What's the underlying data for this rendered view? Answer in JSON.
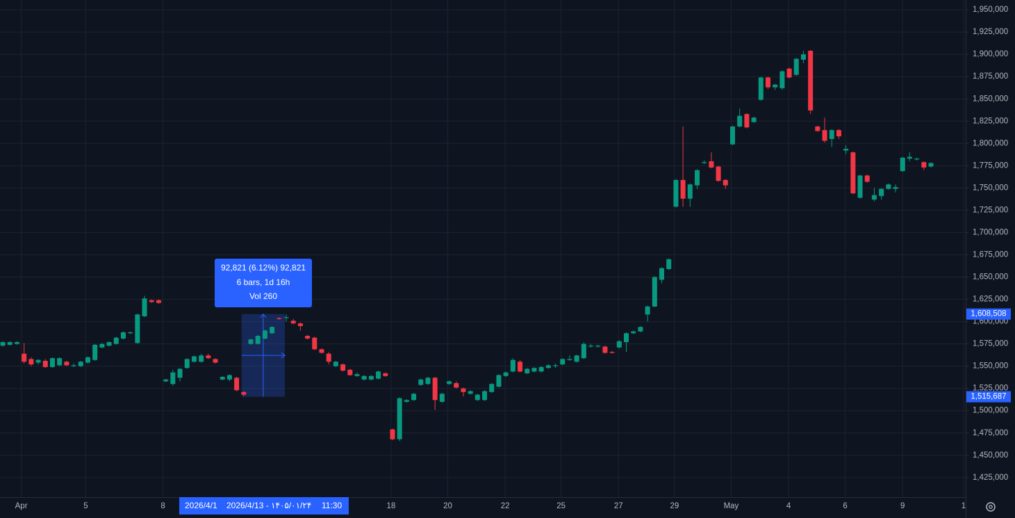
{
  "chart_data": {
    "type": "candlestick",
    "up_color": "#089981",
    "down_color": "#f23645",
    "grid": true,
    "xlim": [
      -0.4,
      135.9
    ],
    "ylim": [
      1403000,
      1961000
    ],
    "yticks": [
      {
        "value": 1425000,
        "label": "1,425,000"
      },
      {
        "value": 1450000,
        "label": "1,450,000"
      },
      {
        "value": 1475000,
        "label": "1,475,000"
      },
      {
        "value": 1500000,
        "label": "1,500,000"
      },
      {
        "value": 1525000,
        "label": "1,525,000"
      },
      {
        "value": 1550000,
        "label": "1,550,000"
      },
      {
        "value": 1575000,
        "label": "1,575,000"
      },
      {
        "value": 1600000,
        "label": "1,600,000"
      },
      {
        "value": 1625000,
        "label": "1,625,000"
      },
      {
        "value": 1650000,
        "label": "1,650,000"
      },
      {
        "value": 1675000,
        "label": "1,675,000"
      },
      {
        "value": 1700000,
        "label": "1,700,000"
      },
      {
        "value": 1725000,
        "label": "1,725,000"
      },
      {
        "value": 1750000,
        "label": "1,750,000"
      },
      {
        "value": 1775000,
        "label": "1,775,000"
      },
      {
        "value": 1800000,
        "label": "1,800,000"
      },
      {
        "value": 1825000,
        "label": "1,825,000"
      },
      {
        "value": 1850000,
        "label": "1,850,000"
      },
      {
        "value": 1875000,
        "label": "1,875,000"
      },
      {
        "value": 1900000,
        "label": "1,900,000"
      },
      {
        "value": 1925000,
        "label": "1,925,000"
      },
      {
        "value": 1950000,
        "label": "1,950,000"
      }
    ],
    "xticks": [
      {
        "value": 2.6,
        "label": "Apr"
      },
      {
        "value": 11.7,
        "label": "5"
      },
      {
        "value": 22.6,
        "label": "8"
      },
      {
        "value": 54.8,
        "label": "18"
      },
      {
        "value": 62.8,
        "label": "20"
      },
      {
        "value": 70.9,
        "label": "22"
      },
      {
        "value": 78.8,
        "label": "25"
      },
      {
        "value": 86.9,
        "label": "27"
      },
      {
        "value": 94.8,
        "label": "29"
      },
      {
        "value": 102.8,
        "label": "May"
      },
      {
        "value": 110.9,
        "label": "4"
      },
      {
        "value": 118.9,
        "label": "6"
      },
      {
        "value": 127.0,
        "label": "9"
      },
      {
        "value": 135.6,
        "label": "1"
      }
    ],
    "open": [
      1573000,
      1574000,
      1575000,
      1564000,
      1558000,
      1554000,
      1556000,
      1549000,
      1551000,
      1555000,
      1550000,
      1550000,
      1554000,
      1557000,
      1571000,
      1573000,
      1575000,
      1581000,
      1587000,
      1576000,
      1606000,
      1624000,
      1624000,
      1533000,
      1530000,
      1537000,
      1548000,
      1555000,
      1555000,
      1562000,
      1558000,
      1535000,
      1535000,
      1537000,
      1521000,
      1575000,
      1575000,
      1581000,
      1587000,
      1604000,
      1604000,
      1601000,
      1598000,
      1584000,
      1582000,
      1569000,
      1564000,
      1550000,
      1552000,
      1546000,
      1539000,
      1535000,
      1535000,
      1536000,
      1542000,
      1479000,
      1468000,
      1510000,
      1512000,
      1529000,
      1530000,
      1537000,
      1510000,
      1530000,
      1531000,
      1525000,
      1519000,
      1512000,
      1512000,
      1521000,
      1527000,
      1539000,
      1544000,
      1555000,
      1542000,
      1544000,
      1544000,
      1548000,
      1550000,
      1552000,
      1557000,
      1555000,
      1559000,
      1572000,
      1572000,
      1572000,
      1566000,
      1571000,
      1577000,
      1587000,
      1589000,
      1608000,
      1617000,
      1647000,
      1659000,
      1729000,
      1759000,
      1738000,
      1753000,
      1778000,
      1780000,
      1774000,
      1759000,
      1799000,
      1819000,
      1833000,
      1824000,
      1849000,
      1874000,
      1863000,
      1862000,
      1884000,
      1877000,
      1894000,
      1904000,
      1819000,
      1815000,
      1805000,
      1815000,
      1792000,
      1790000,
      1739000,
      1764000,
      1737000,
      1741000,
      1749000,
      1749000,
      1769000,
      1783000,
      1782000,
      1779000,
      1774000
    ],
    "high": [
      1578000,
      1578000,
      1578000,
      1576000,
      1560000,
      1558000,
      1558000,
      1560000,
      1560000,
      1556000,
      1553000,
      1556000,
      1561000,
      1575000,
      1576000,
      1578000,
      1583000,
      1589000,
      1589000,
      1609000,
      1629000,
      1625000,
      1625000,
      1536000,
      1546000,
      1548000,
      1559000,
      1562000,
      1564000,
      1564000,
      1559000,
      1539000,
      1541000,
      1538000,
      1522000,
      1581000,
      1585000,
      1591000,
      1595000,
      1605000,
      1608000,
      1603000,
      1599000,
      1585000,
      1583000,
      1570000,
      1566000,
      1556000,
      1553000,
      1547000,
      1543000,
      1540000,
      1540000,
      1545000,
      1543000,
      1480000,
      1515000,
      1513000,
      1520000,
      1536000,
      1538000,
      1538000,
      1520000,
      1534000,
      1533000,
      1526000,
      1523000,
      1519000,
      1523000,
      1531000,
      1541000,
      1544000,
      1559000,
      1557000,
      1548000,
      1549000,
      1550000,
      1552000,
      1553000,
      1559000,
      1562000,
      1563000,
      1577000,
      1575000,
      1574000,
      1573000,
      1567000,
      1579000,
      1588000,
      1590000,
      1595000,
      1618000,
      1651000,
      1661000,
      1671000,
      1760000,
      1819000,
      1755000,
      1771000,
      1781000,
      1790000,
      1775000,
      1760000,
      1820000,
      1839000,
      1834000,
      1830000,
      1875000,
      1875000,
      1867000,
      1882000,
      1885000,
      1896000,
      1904000,
      1905000,
      1820000,
      1829000,
      1816000,
      1816000,
      1798000,
      1791000,
      1765000,
      1765000,
      1750000,
      1750000,
      1755000,
      1754000,
      1785000,
      1790000,
      1784000,
      1780000,
      1779000
    ],
    "low": [
      1572000,
      1573000,
      1574000,
      1553000,
      1550000,
      1552000,
      1548000,
      1548000,
      1550000,
      1550000,
      1549000,
      1549000,
      1553000,
      1556000,
      1570000,
      1572000,
      1574000,
      1580000,
      1586000,
      1575000,
      1605000,
      1621000,
      1620000,
      1532000,
      1528000,
      1533000,
      1547000,
      1554000,
      1554000,
      1558000,
      1553000,
      1534000,
      1533000,
      1522000,
      1516000,
      1574000,
      1574000,
      1580000,
      1586000,
      1602000,
      1600000,
      1597000,
      1590000,
      1580000,
      1568000,
      1564000,
      1552000,
      1549000,
      1544000,
      1539000,
      1538000,
      1534000,
      1534000,
      1535000,
      1538000,
      1467000,
      1466000,
      1509000,
      1511000,
      1528000,
      1529000,
      1501000,
      1509000,
      1529000,
      1525000,
      1516000,
      1518000,
      1511000,
      1511000,
      1520000,
      1526000,
      1538000,
      1543000,
      1543000,
      1541000,
      1543000,
      1543000,
      1547000,
      1548000,
      1551000,
      1556000,
      1554000,
      1558000,
      1571000,
      1571000,
      1564000,
      1564000,
      1570000,
      1566000,
      1586000,
      1588000,
      1600000,
      1616000,
      1643000,
      1658000,
      1728000,
      1729000,
      1729000,
      1749000,
      1777000,
      1772000,
      1757000,
      1749000,
      1798000,
      1818000,
      1817000,
      1823000,
      1848000,
      1861000,
      1860000,
      1860000,
      1873000,
      1876000,
      1890000,
      1833000,
      1813000,
      1801000,
      1796000,
      1805000,
      1788000,
      1743000,
      1738000,
      1756000,
      1735000,
      1737000,
      1748000,
      1745000,
      1768000,
      1780000,
      1781000,
      1770000,
      1773000
    ],
    "close": [
      1577000,
      1577000,
      1577000,
      1555000,
      1552000,
      1557000,
      1549000,
      1559000,
      1559000,
      1551000,
      1551000,
      1555000,
      1560000,
      1574000,
      1575000,
      1577000,
      1582000,
      1588000,
      1588000,
      1608000,
      1626000,
      1622000,
      1621000,
      1535000,
      1543000,
      1547000,
      1558000,
      1561000,
      1562000,
      1559000,
      1554000,
      1538000,
      1540000,
      1523000,
      1518000,
      1580000,
      1584000,
      1590000,
      1594000,
      1603000,
      1605000,
      1598000,
      1595000,
      1581000,
      1569000,
      1565000,
      1555000,
      1555000,
      1545000,
      1540000,
      1541000,
      1539000,
      1539000,
      1544000,
      1539000,
      1468000,
      1514000,
      1512000,
      1519000,
      1535000,
      1537000,
      1512000,
      1519000,
      1533000,
      1526000,
      1521000,
      1522000,
      1518000,
      1522000,
      1530000,
      1540000,
      1543000,
      1557000,
      1544000,
      1547000,
      1548000,
      1549000,
      1551000,
      1551000,
      1558000,
      1558000,
      1562000,
      1575000,
      1573000,
      1573000,
      1565000,
      1565000,
      1578000,
      1587000,
      1589000,
      1594000,
      1617000,
      1650000,
      1660000,
      1670000,
      1759000,
      1738000,
      1754000,
      1770000,
      1779000,
      1773000,
      1758000,
      1753000,
      1819000,
      1831000,
      1818000,
      1829000,
      1874000,
      1863000,
      1866000,
      1881000,
      1874000,
      1895000,
      1900000,
      1837000,
      1814000,
      1803000,
      1815000,
      1808000,
      1794000,
      1744000,
      1764000,
      1757000,
      1742000,
      1749000,
      1754000,
      1751000,
      1784000,
      1785000,
      1783000,
      1773000,
      1778000
    ],
    "measurement": {
      "start_index": 34,
      "end_index": 40,
      "low": {
        "value": 1515687,
        "label": "1,515,687"
      },
      "high": {
        "value": 1608508,
        "label": "1,608,508"
      },
      "info": [
        "92,821 (6.12%) 92,821",
        "6 bars, 1d 16h",
        "Vol 260"
      ]
    },
    "crosshair": {
      "range_start": "2026/4/1",
      "time": "2026/4/13 - ۱۴۰۵/۰۱/۲۴",
      "clock": "11:30"
    }
  }
}
